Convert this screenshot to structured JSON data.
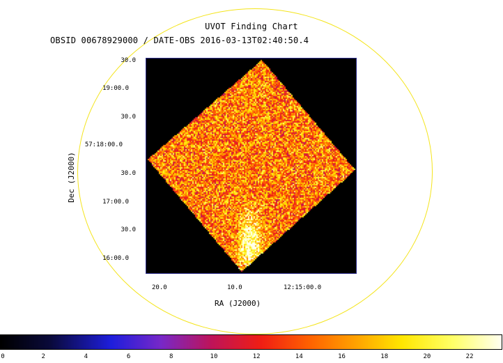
{
  "title": "UVOT Finding Chart",
  "subtitle": "OBSID 00678929000 / DATE-OBS 2016-03-13T02:40:50.4",
  "axes": {
    "xlabel": "RA (J2000)",
    "ylabel": "Dec (J2000)",
    "ra_ticks": [
      "20.0",
      "10.0",
      "12:15:00.0"
    ],
    "dec_ticks": [
      "30.0",
      "19:00.0",
      "30.0",
      "57:18:00.0",
      "30.0",
      "17:00.0",
      "30.0",
      "16:00.0"
    ]
  },
  "colorbar": {
    "min": 0,
    "max": 23.5,
    "ticks": [
      "0",
      "2",
      "4",
      "6",
      "8",
      "10",
      "12",
      "14",
      "16",
      "18",
      "20",
      "22"
    ],
    "colormap": "heat"
  },
  "colors": {
    "fov_circle": "#f4e41a",
    "frame_border": "#2a2a8c",
    "background": "#000000"
  }
}
